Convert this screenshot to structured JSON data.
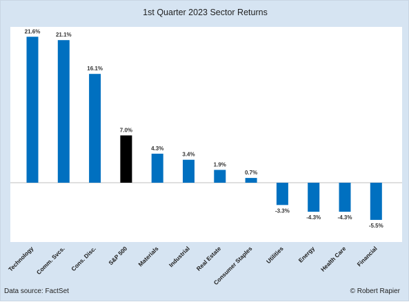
{
  "chart_data": {
    "type": "bar",
    "title": "1st Quarter 2023 Sector Returns",
    "categories": [
      "Technology",
      "Comm. Svcs.",
      "Cons. Disc.",
      "S&P 500",
      "Materials",
      "Industrial",
      "Real Estate",
      "Consumer Staples",
      "Utilities",
      "Energy",
      "Health Care",
      "Financial"
    ],
    "values": [
      21.6,
      21.1,
      16.1,
      7.0,
      4.3,
      3.4,
      1.9,
      0.7,
      -3.3,
      -4.3,
      -4.3,
      -5.5
    ],
    "value_labels": [
      "21.6%",
      "21.1%",
      "16.1%",
      "7.0%",
      "4.3%",
      "3.4%",
      "1.9%",
      "0.7%",
      "-3.3%",
      "-4.3%",
      "-4.3%",
      "-5.5%"
    ],
    "xlabel": "",
    "ylabel": "",
    "ylim": [
      -6.5,
      22
    ],
    "grid": false,
    "legend": "none",
    "colors": {
      "bar": "#0070c0",
      "highlight_bar": "#000000",
      "highlight_category": "S&P 500",
      "zero_line": "#bfbfbf"
    }
  },
  "footer": {
    "source": "Data source: FactSet",
    "copyright": "© Robert Rapier"
  }
}
